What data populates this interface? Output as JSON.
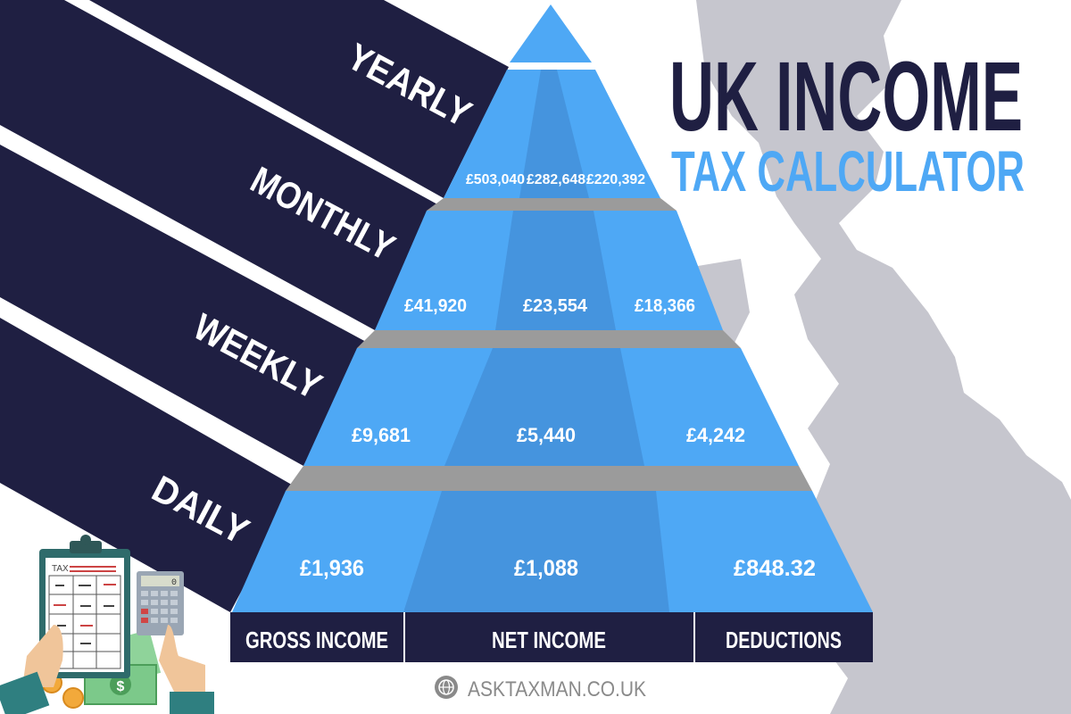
{
  "title": {
    "line1": "UK INCOME",
    "line2": "TAX CALCULATOR"
  },
  "colors": {
    "navy": "#1f1f42",
    "blue_light": "#4ea8f5",
    "blue_dark": "#4594de",
    "slab_grey": "#9b9b9b",
    "map_grey": "#c6c6ce"
  },
  "tiers": [
    {
      "label": "YEARLY",
      "gross": "£503,040",
      "net": "£282,648",
      "deductions": "£220,392"
    },
    {
      "label": "MONTHLY",
      "gross": "£41,920",
      "net": "£23,554",
      "deductions": "£18,366"
    },
    {
      "label": "WEEKLY",
      "gross": "£9,681",
      "net": "£5,440",
      "deductions": "£4,242"
    },
    {
      "label": "DAILY",
      "gross": "£1,936",
      "net": "£1,088",
      "deductions": "£848.32"
    }
  ],
  "columns": [
    "GROSS INCOME",
    "NET INCOME",
    "DEDUCTIONS"
  ],
  "footer": {
    "website": "ASKTAXMAN.CO.UK",
    "icon": "globe-icon"
  },
  "illustration": {
    "clipboard_label": "TAX",
    "calculator_display": "0"
  }
}
